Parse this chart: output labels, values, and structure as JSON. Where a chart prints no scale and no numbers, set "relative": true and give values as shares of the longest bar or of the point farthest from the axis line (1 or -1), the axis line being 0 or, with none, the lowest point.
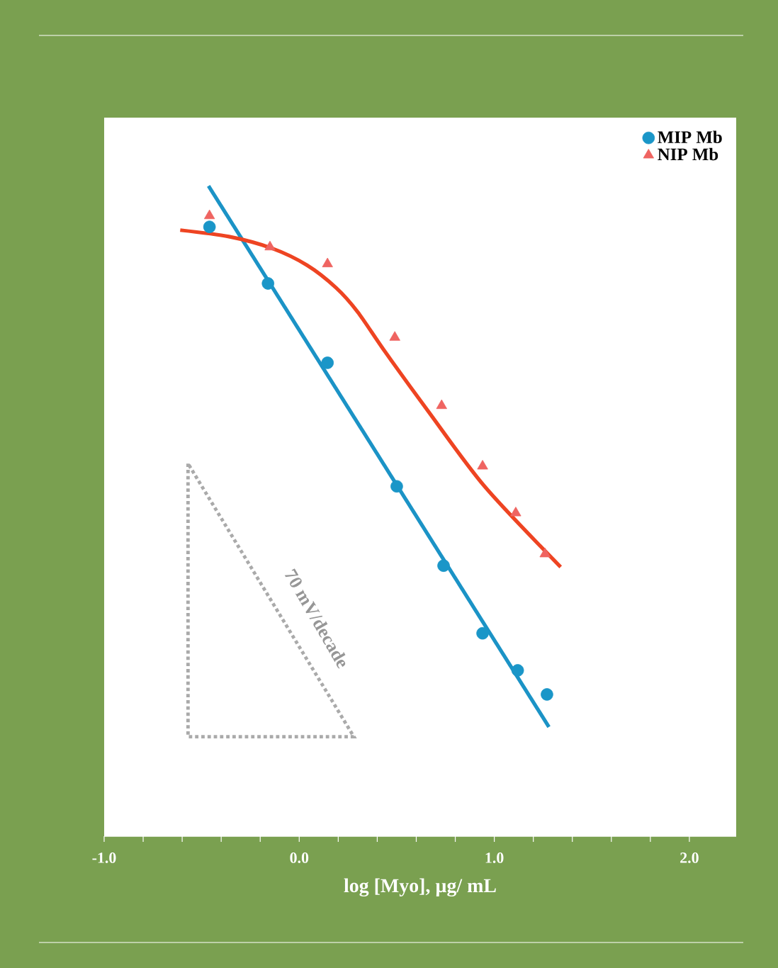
{
  "chart_data": {
    "type": "scatter",
    "relative": true,
    "xlabel": "log [Myo], µg/ mL",
    "xlim": [
      -1.0,
      2.24
    ],
    "xticks": [
      {
        "value": -1.0,
        "label": "-1.0"
      },
      {
        "value": -0.8,
        "label": null
      },
      {
        "value": -0.6,
        "label": null
      },
      {
        "value": -0.4,
        "label": null
      },
      {
        "value": -0.2,
        "label": null
      },
      {
        "value": 0.0,
        "label": "0.0"
      },
      {
        "value": 0.2,
        "label": null
      },
      {
        "value": 0.4,
        "label": null
      },
      {
        "value": 0.6,
        "label": null
      },
      {
        "value": 0.8,
        "label": null
      },
      {
        "value": 1.0,
        "label": "1.0"
      },
      {
        "value": 1.2,
        "label": null
      },
      {
        "value": 1.4,
        "label": null
      },
      {
        "value": 1.6,
        "label": null
      },
      {
        "value": 1.8,
        "label": null
      },
      {
        "value": 2.0,
        "label": "2.0"
      }
    ],
    "tick_labels": "x",
    "legend": "top right",
    "annotations": [
      "70 mV/decade"
    ],
    "series": [
      {
        "name": "MIP Mb",
        "marker": "circle",
        "color": "#1a96c8",
        "x": [
          -0.46,
          -0.16,
          0.145,
          0.5,
          0.74,
          0.94,
          1.12,
          1.27
        ],
        "values": [
          0.937,
          0.85,
          0.728,
          0.538,
          0.416,
          0.312,
          0.255,
          0.218
        ]
      },
      {
        "name": "NIP Mb",
        "marker": "triangle",
        "color": "#ef6461",
        "x": [
          -0.46,
          -0.15,
          0.145,
          0.49,
          0.73,
          0.94,
          1.11,
          1.26
        ],
        "values": [
          0.954,
          0.906,
          0.88,
          0.767,
          0.662,
          0.569,
          0.497,
          0.434
        ]
      },
      {
        "type": "line",
        "color": "#1b93c6",
        "x": [
          -0.465,
          1.28
        ],
        "values": [
          1.0,
          0.168
        ]
      },
      {
        "type": "line",
        "color": "#ee4422",
        "x": [
          -0.61,
          -0.36,
          -0.14,
          0.04,
          0.19,
          0.3,
          0.44,
          0.66,
          0.95,
          1.34
        ],
        "values": [
          0.932,
          0.922,
          0.904,
          0.878,
          0.843,
          0.806,
          0.745,
          0.654,
          0.538,
          0.414
        ]
      }
    ]
  }
}
